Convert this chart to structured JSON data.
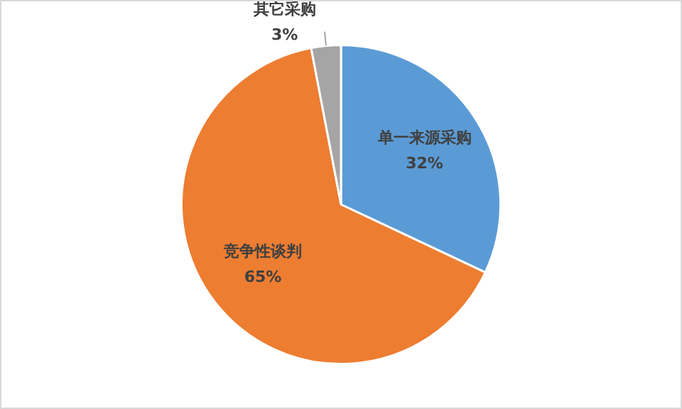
{
  "chart_data": {
    "type": "pie",
    "categories": [
      "单一来源采购",
      "竞争性谈判",
      "其它采购"
    ],
    "values": [
      32,
      65,
      3
    ],
    "colors": [
      "#5b9bd5",
      "#ed7d31",
      "#a5a5a5"
    ],
    "value_labels": [
      "32%",
      "65%",
      "3%"
    ],
    "legend": false
  }
}
